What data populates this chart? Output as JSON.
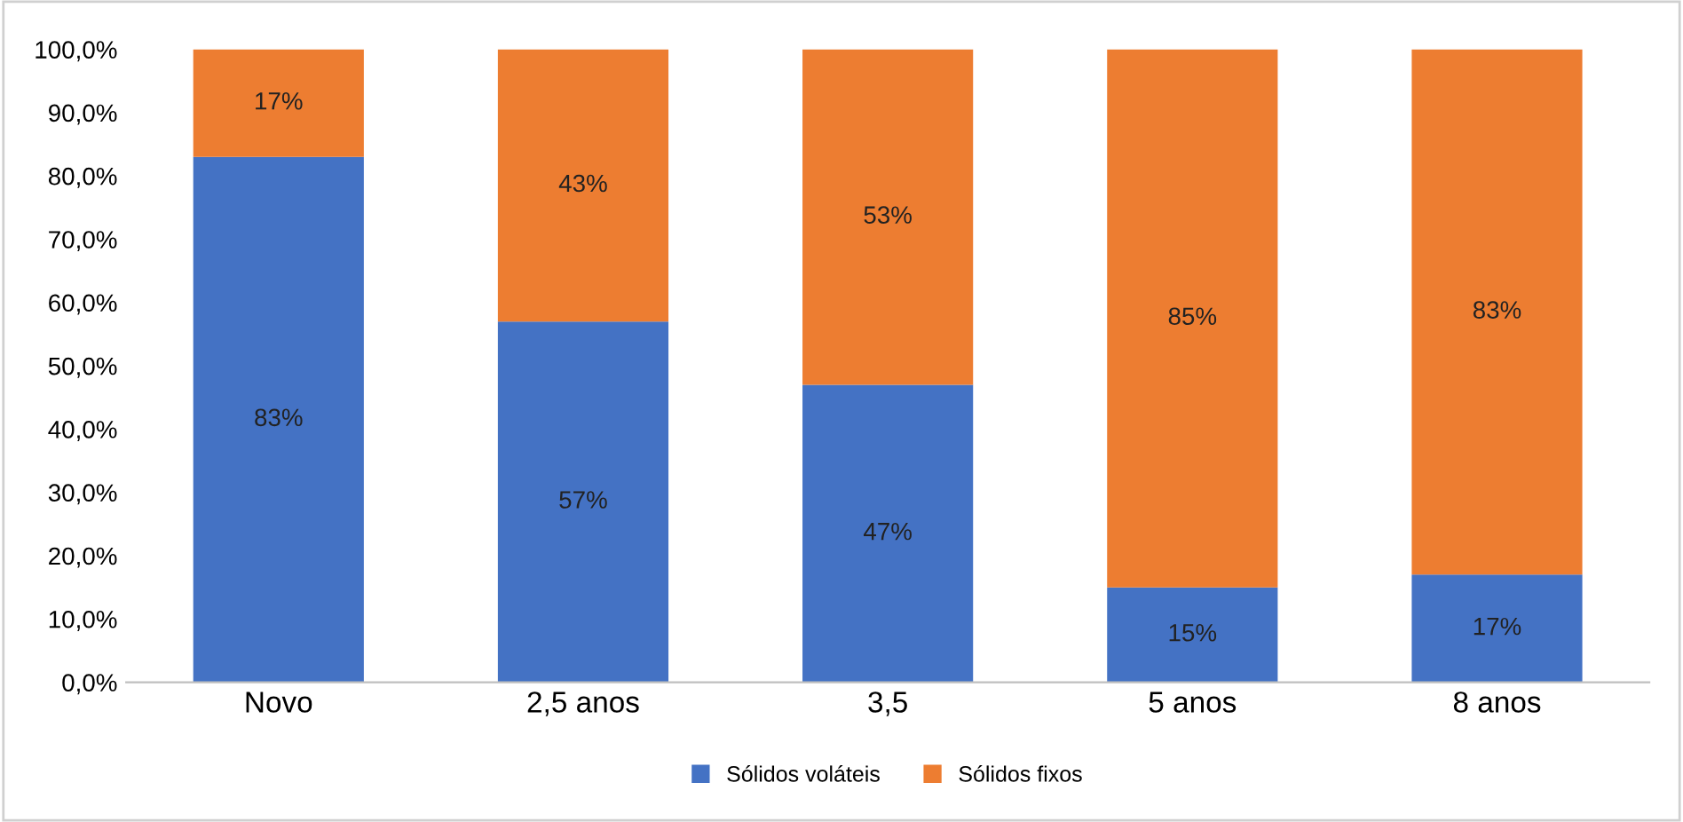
{
  "chart_data": {
    "type": "bar",
    "stacked": true,
    "categories": [
      "Novo",
      "2,5 anos",
      "3,5",
      "5 anos",
      "8 anos"
    ],
    "series": [
      {
        "name": "Sólidos voláteis",
        "color": "#4472c4",
        "values": [
          83,
          57,
          47,
          15,
          17
        ],
        "value_labels": [
          "83%",
          "57%",
          "47%",
          "15%",
          "17%"
        ]
      },
      {
        "name": "Sólidos fixos",
        "color": "#ed7d31",
        "values": [
          17,
          43,
          53,
          85,
          83
        ],
        "value_labels": [
          "17%",
          "43%",
          "53%",
          "85%",
          "83%"
        ]
      }
    ],
    "ylim": [
      0,
      100
    ],
    "yticks": [
      {
        "value": 0,
        "label": "0,0%"
      },
      {
        "value": 10,
        "label": "10,0%"
      },
      {
        "value": 20,
        "label": "20,0%"
      },
      {
        "value": 30,
        "label": "30,0%"
      },
      {
        "value": 40,
        "label": "40,0%"
      },
      {
        "value": 50,
        "label": "50,0%"
      },
      {
        "value": 60,
        "label": "60,0%"
      },
      {
        "value": 70,
        "label": "70,0%"
      },
      {
        "value": 80,
        "label": "80,0%"
      },
      {
        "value": 90,
        "label": "90,0%"
      },
      {
        "value": 100,
        "label": "100,0%"
      }
    ],
    "legend": "bottom"
  }
}
